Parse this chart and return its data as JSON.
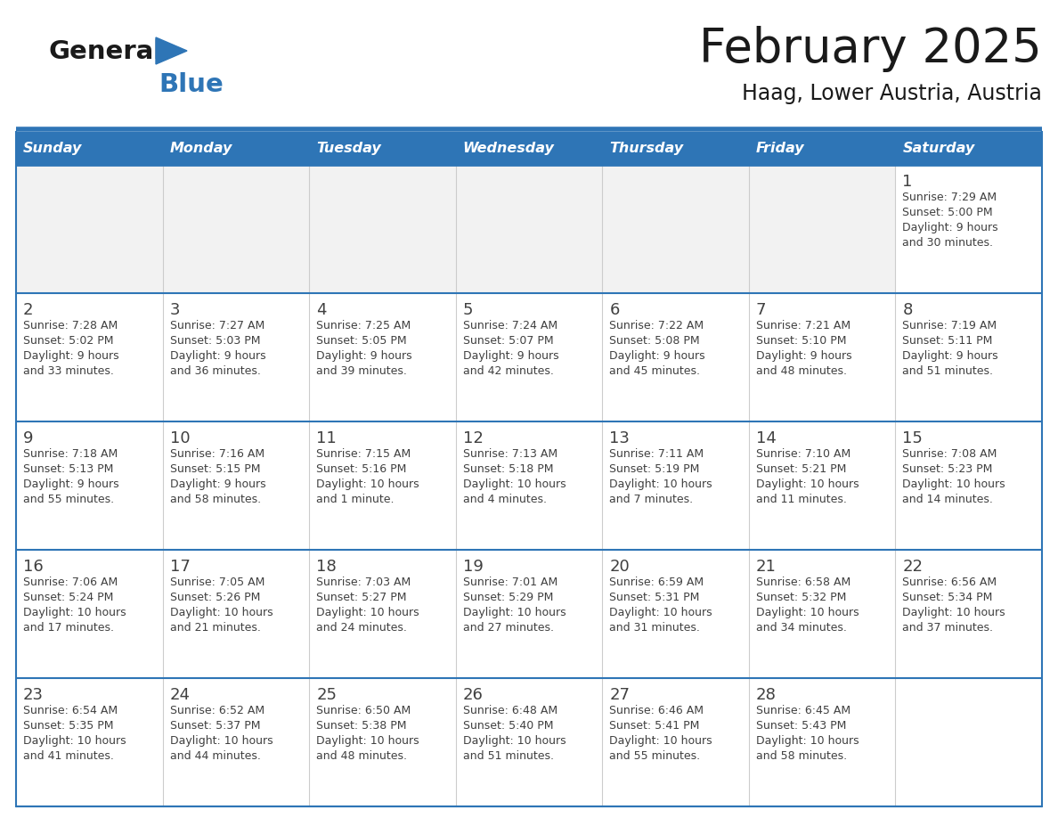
{
  "title": "February 2025",
  "subtitle": "Haag, Lower Austria, Austria",
  "header_bg": "#2E75B6",
  "header_text_color": "#FFFFFF",
  "cell_bg_white": "#FFFFFF",
  "cell_bg_light": "#F2F2F2",
  "border_color": "#2E75B6",
  "day_number_color": "#404040",
  "cell_text_color": "#404040",
  "title_color": "#1a1a1a",
  "days_of_week": [
    "Sunday",
    "Monday",
    "Tuesday",
    "Wednesday",
    "Thursday",
    "Friday",
    "Saturday"
  ],
  "weeks": [
    [
      {
        "day": "",
        "info": ""
      },
      {
        "day": "",
        "info": ""
      },
      {
        "day": "",
        "info": ""
      },
      {
        "day": "",
        "info": ""
      },
      {
        "day": "",
        "info": ""
      },
      {
        "day": "",
        "info": ""
      },
      {
        "day": "1",
        "info": "Sunrise: 7:29 AM\nSunset: 5:00 PM\nDaylight: 9 hours\nand 30 minutes."
      }
    ],
    [
      {
        "day": "2",
        "info": "Sunrise: 7:28 AM\nSunset: 5:02 PM\nDaylight: 9 hours\nand 33 minutes."
      },
      {
        "day": "3",
        "info": "Sunrise: 7:27 AM\nSunset: 5:03 PM\nDaylight: 9 hours\nand 36 minutes."
      },
      {
        "day": "4",
        "info": "Sunrise: 7:25 AM\nSunset: 5:05 PM\nDaylight: 9 hours\nand 39 minutes."
      },
      {
        "day": "5",
        "info": "Sunrise: 7:24 AM\nSunset: 5:07 PM\nDaylight: 9 hours\nand 42 minutes."
      },
      {
        "day": "6",
        "info": "Sunrise: 7:22 AM\nSunset: 5:08 PM\nDaylight: 9 hours\nand 45 minutes."
      },
      {
        "day": "7",
        "info": "Sunrise: 7:21 AM\nSunset: 5:10 PM\nDaylight: 9 hours\nand 48 minutes."
      },
      {
        "day": "8",
        "info": "Sunrise: 7:19 AM\nSunset: 5:11 PM\nDaylight: 9 hours\nand 51 minutes."
      }
    ],
    [
      {
        "day": "9",
        "info": "Sunrise: 7:18 AM\nSunset: 5:13 PM\nDaylight: 9 hours\nand 55 minutes."
      },
      {
        "day": "10",
        "info": "Sunrise: 7:16 AM\nSunset: 5:15 PM\nDaylight: 9 hours\nand 58 minutes."
      },
      {
        "day": "11",
        "info": "Sunrise: 7:15 AM\nSunset: 5:16 PM\nDaylight: 10 hours\nand 1 minute."
      },
      {
        "day": "12",
        "info": "Sunrise: 7:13 AM\nSunset: 5:18 PM\nDaylight: 10 hours\nand 4 minutes."
      },
      {
        "day": "13",
        "info": "Sunrise: 7:11 AM\nSunset: 5:19 PM\nDaylight: 10 hours\nand 7 minutes."
      },
      {
        "day": "14",
        "info": "Sunrise: 7:10 AM\nSunset: 5:21 PM\nDaylight: 10 hours\nand 11 minutes."
      },
      {
        "day": "15",
        "info": "Sunrise: 7:08 AM\nSunset: 5:23 PM\nDaylight: 10 hours\nand 14 minutes."
      }
    ],
    [
      {
        "day": "16",
        "info": "Sunrise: 7:06 AM\nSunset: 5:24 PM\nDaylight: 10 hours\nand 17 minutes."
      },
      {
        "day": "17",
        "info": "Sunrise: 7:05 AM\nSunset: 5:26 PM\nDaylight: 10 hours\nand 21 minutes."
      },
      {
        "day": "18",
        "info": "Sunrise: 7:03 AM\nSunset: 5:27 PM\nDaylight: 10 hours\nand 24 minutes."
      },
      {
        "day": "19",
        "info": "Sunrise: 7:01 AM\nSunset: 5:29 PM\nDaylight: 10 hours\nand 27 minutes."
      },
      {
        "day": "20",
        "info": "Sunrise: 6:59 AM\nSunset: 5:31 PM\nDaylight: 10 hours\nand 31 minutes."
      },
      {
        "day": "21",
        "info": "Sunrise: 6:58 AM\nSunset: 5:32 PM\nDaylight: 10 hours\nand 34 minutes."
      },
      {
        "day": "22",
        "info": "Sunrise: 6:56 AM\nSunset: 5:34 PM\nDaylight: 10 hours\nand 37 minutes."
      }
    ],
    [
      {
        "day": "23",
        "info": "Sunrise: 6:54 AM\nSunset: 5:35 PM\nDaylight: 10 hours\nand 41 minutes."
      },
      {
        "day": "24",
        "info": "Sunrise: 6:52 AM\nSunset: 5:37 PM\nDaylight: 10 hours\nand 44 minutes."
      },
      {
        "day": "25",
        "info": "Sunrise: 6:50 AM\nSunset: 5:38 PM\nDaylight: 10 hours\nand 48 minutes."
      },
      {
        "day": "26",
        "info": "Sunrise: 6:48 AM\nSunset: 5:40 PM\nDaylight: 10 hours\nand 51 minutes."
      },
      {
        "day": "27",
        "info": "Sunrise: 6:46 AM\nSunset: 5:41 PM\nDaylight: 10 hours\nand 55 minutes."
      },
      {
        "day": "28",
        "info": "Sunrise: 6:45 AM\nSunset: 5:43 PM\nDaylight: 10 hours\nand 58 minutes."
      },
      {
        "day": "",
        "info": ""
      }
    ]
  ],
  "logo_general_color": "#1a1a1a",
  "logo_blue_color": "#2E75B6",
  "logo_triangle_color": "#2E75B6"
}
